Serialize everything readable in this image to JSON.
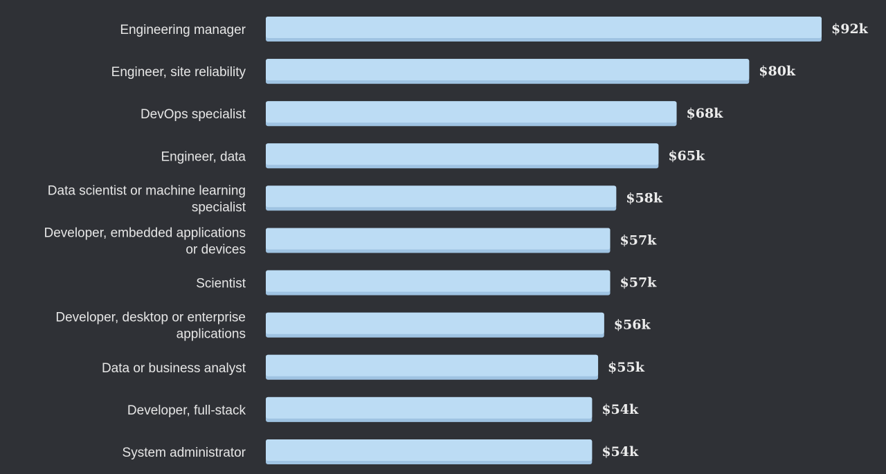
{
  "chart_data": {
    "type": "bar",
    "orientation": "horizontal",
    "categories": [
      [
        "Engineering manager"
      ],
      [
        "Engineer, site reliability"
      ],
      [
        "DevOps specialist"
      ],
      [
        "Engineer, data"
      ],
      [
        "Data scientist or machine learning",
        "specialist"
      ],
      [
        "Developer, embedded applications",
        "or devices"
      ],
      [
        "Scientist"
      ],
      [
        "Developer, desktop or enterprise",
        "applications"
      ],
      [
        "Data or business analyst"
      ],
      [
        "Developer, full-stack"
      ],
      [
        "System administrator"
      ]
    ],
    "values": [
      92,
      80,
      68,
      65,
      58,
      57,
      57,
      56,
      55,
      54,
      54
    ],
    "value_labels": [
      "$92k",
      "$80k",
      "$68k",
      "$65k",
      "$58k",
      "$57k",
      "$57k",
      "$56k",
      "$55k",
      "$54k",
      "$54k"
    ],
    "title": "",
    "xlabel": "",
    "ylabel": "",
    "xlim": [
      0,
      92
    ],
    "grid": false,
    "legend": "none",
    "colors": {
      "background": "#2f3136",
      "bar": "#bcdcf4",
      "bar_shadow": "#9fc3e2",
      "label": "#e6e6e6",
      "value_label": "#ececec"
    }
  }
}
